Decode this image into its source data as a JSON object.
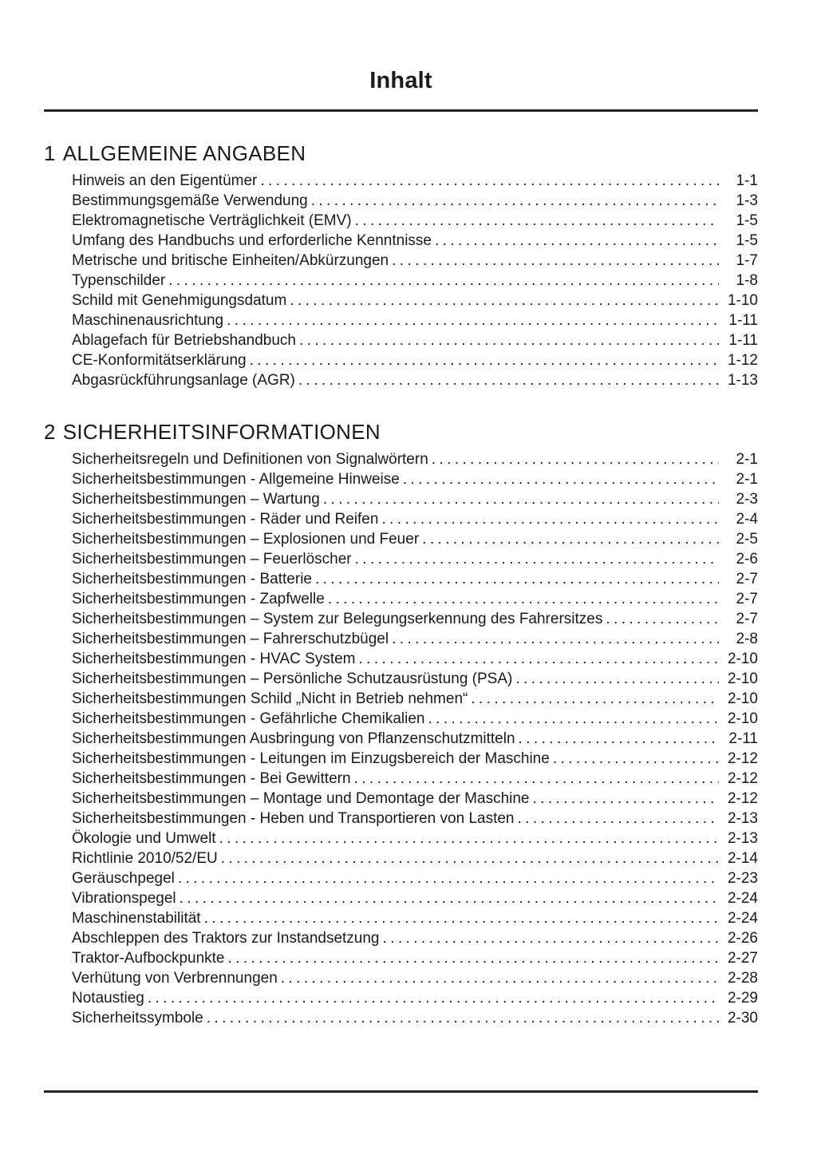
{
  "page": {
    "title": "Inhalt"
  },
  "sections": [
    {
      "number": "1",
      "title": "ALLGEMEINE ANGABEN",
      "entries": [
        {
          "label": "Hinweis an den Eigentümer",
          "page": "1-1"
        },
        {
          "label": "Bestimmungsgemäße Verwendung",
          "page": "1-3"
        },
        {
          "label": "Elektromagnetische Verträglichkeit (EMV)",
          "page": "1-5"
        },
        {
          "label": "Umfang des Handbuchs und erforderliche Kenntnisse",
          "page": "1-5"
        },
        {
          "label": "Metrische und britische Einheiten/Abkürzungen",
          "page": "1-7"
        },
        {
          "label": "Typenschilder",
          "page": "1-8"
        },
        {
          "label": "Schild mit Genehmigungsdatum",
          "page": "1-10"
        },
        {
          "label": "Maschinenausrichtung",
          "page": "1-11"
        },
        {
          "label": "Ablagefach für Betriebshandbuch",
          "page": "1-11"
        },
        {
          "label": "CE-Konformitätserklärung",
          "page": "1-12"
        },
        {
          "label": "Abgasrückführungsanlage (AGR)",
          "page": "1-13"
        }
      ]
    },
    {
      "number": "2",
      "title": "SICHERHEITSINFORMATIONEN",
      "entries": [
        {
          "label": "Sicherheitsregeln und Definitionen von Signalwörtern",
          "page": "2-1"
        },
        {
          "label": "Sicherheitsbestimmungen - Allgemeine Hinweise",
          "page": "2-1"
        },
        {
          "label": "Sicherheitsbestimmungen – Wartung",
          "page": "2-3"
        },
        {
          "label": "Sicherheitsbestimmungen - Räder und Reifen",
          "page": "2-4"
        },
        {
          "label": "Sicherheitsbestimmungen – Explosionen und Feuer",
          "page": "2-5"
        },
        {
          "label": "Sicherheitsbestimmungen – Feuerlöscher",
          "page": "2-6"
        },
        {
          "label": "Sicherheitsbestimmungen - Batterie",
          "page": "2-7"
        },
        {
          "label": "Sicherheitsbestimmungen - Zapfwelle",
          "page": "2-7"
        },
        {
          "label": "Sicherheitsbestimmungen – System zur Belegungserkennung des Fahrersitzes",
          "page": "2-7"
        },
        {
          "label": "Sicherheitsbestimmungen – Fahrerschutzbügel",
          "page": "2-8"
        },
        {
          "label": "Sicherheitsbestimmungen - HVAC System",
          "page": "2-10"
        },
        {
          "label": "Sicherheitsbestimmungen – Persönliche Schutzausrüstung (PSA)",
          "page": "2-10"
        },
        {
          "label": "Sicherheitsbestimmungen Schild „Nicht in Betrieb nehmen“",
          "page": "2-10"
        },
        {
          "label": "Sicherheitsbestimmungen - Gefährliche Chemikalien",
          "page": "2-10"
        },
        {
          "label": "Sicherheitsbestimmungen Ausbringung von Pflanzenschutzmitteln",
          "page": "2-11"
        },
        {
          "label": "Sicherheitsbestimmungen - Leitungen im Einzugsbereich der Maschine",
          "page": "2-12"
        },
        {
          "label": "Sicherheitsbestimmungen - Bei Gewittern",
          "page": "2-12"
        },
        {
          "label": "Sicherheitsbestimmungen – Montage und Demontage der Maschine",
          "page": "2-12"
        },
        {
          "label": "Sicherheitsbestimmungen - Heben und Transportieren von Lasten",
          "page": "2-13"
        },
        {
          "label": "Ökologie und Umwelt",
          "page": "2-13"
        },
        {
          "label": "Richtlinie 2010/52/EU",
          "page": "2-14"
        },
        {
          "label": "Geräuschpegel",
          "page": "2-23"
        },
        {
          "label": "Vibrationspegel",
          "page": "2-24"
        },
        {
          "label": "Maschinenstabilität",
          "page": "2-24"
        },
        {
          "label": "Abschleppen des Traktors zur Instandsetzung",
          "page": "2-26"
        },
        {
          "label": "Traktor-Aufbockpunkte",
          "page": "2-27"
        },
        {
          "label": "Verhütung von Verbrennungen",
          "page": "2-28"
        },
        {
          "label": "Notaustieg",
          "page": "2-29"
        },
        {
          "label": "Sicherheitssymbole",
          "page": "2-30"
        }
      ]
    }
  ]
}
